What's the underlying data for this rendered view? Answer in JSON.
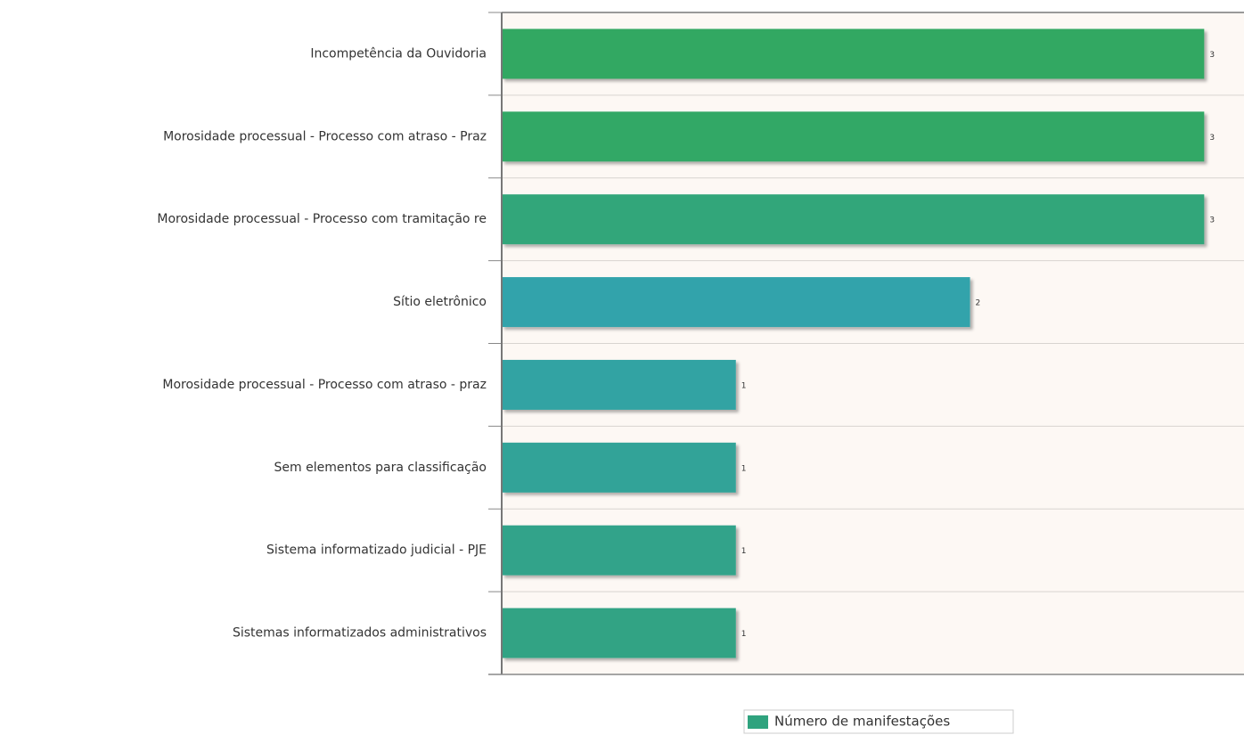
{
  "chart_data": {
    "type": "hbar",
    "categories": [
      "Incompetência da Ouvidoria",
      "Morosidade processual - Processo com atraso - Praz",
      "Morosidade processual - Processo com tramitação re",
      "Sítio eletrônico",
      "Morosidade processual - Processo com atraso - praz",
      "Sem elementos para classificação",
      "Sistema informatizado judicial - PJE",
      "Sistemas informatizados administrativos"
    ],
    "series": [
      {
        "name": "Número de manifestações",
        "color": "#2fa37e",
        "values": [
          3,
          3,
          3,
          2,
          1,
          1,
          1,
          1
        ],
        "colors": [
          "#33a862",
          "#33a866",
          "#31a67a",
          "#30a3ab",
          "#30a3a3",
          "#30a398",
          "#30a38a",
          "#30a384"
        ]
      }
    ],
    "xlim": [
      0,
      3.17
    ],
    "grid": true,
    "legend": "bottom"
  }
}
